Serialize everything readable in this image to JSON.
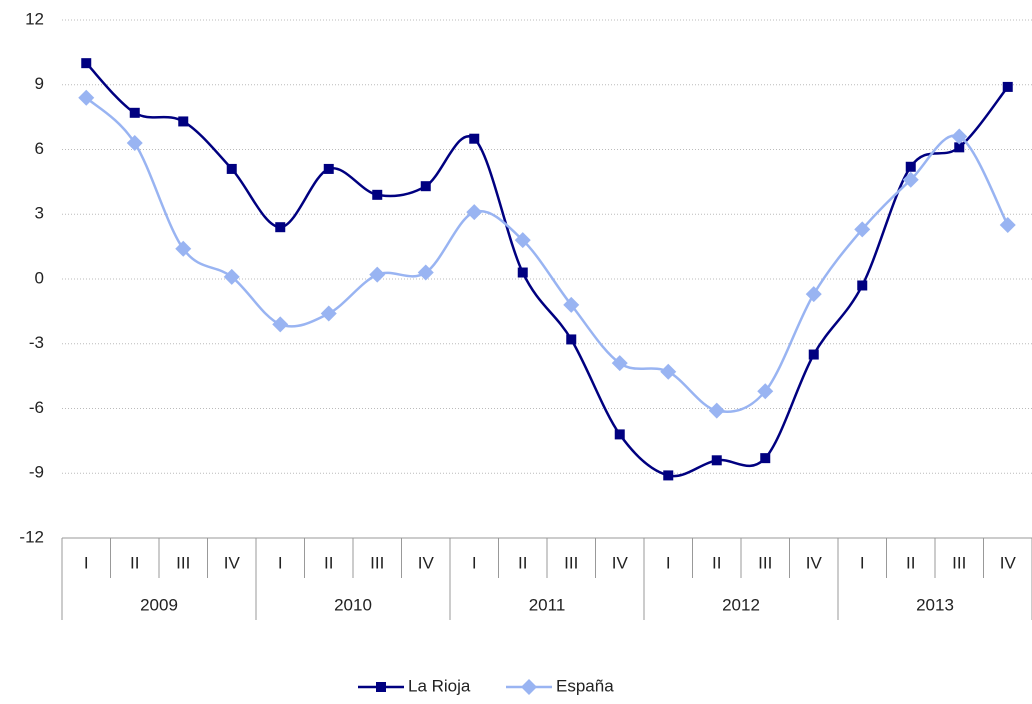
{
  "chart_data": {
    "type": "line",
    "categories": [
      "I",
      "II",
      "III",
      "IV",
      "I",
      "II",
      "III",
      "IV",
      "I",
      "II",
      "III",
      "IV",
      "I",
      "II",
      "III",
      "IV",
      "I",
      "II",
      "III",
      "IV"
    ],
    "category_groups": [
      "2009",
      "2010",
      "2011",
      "2012",
      "2013"
    ],
    "series": [
      {
        "name": "La Rioja",
        "color": "#000080",
        "marker": "square",
        "values": [
          10.0,
          7.7,
          7.3,
          5.1,
          2.4,
          5.1,
          3.9,
          4.3,
          6.5,
          0.3,
          -2.8,
          -7.2,
          -9.1,
          -8.4,
          -8.3,
          -3.5,
          -0.3,
          5.2,
          6.1,
          8.9
        ]
      },
      {
        "name": "España",
        "color": "#99b4f2",
        "marker": "diamond",
        "values": [
          8.4,
          6.3,
          1.4,
          0.1,
          -2.1,
          -1.6,
          0.2,
          0.3,
          3.1,
          1.8,
          -1.2,
          -3.9,
          -4.3,
          -6.1,
          -5.2,
          -0.7,
          2.3,
          4.6,
          6.6,
          2.5
        ]
      }
    ],
    "ylim": [
      -12,
      12
    ],
    "yticks": [
      -12,
      -9,
      -6,
      -3,
      0,
      3,
      6,
      9,
      12
    ],
    "grid": true,
    "smooth": true,
    "legend": "bottom"
  }
}
